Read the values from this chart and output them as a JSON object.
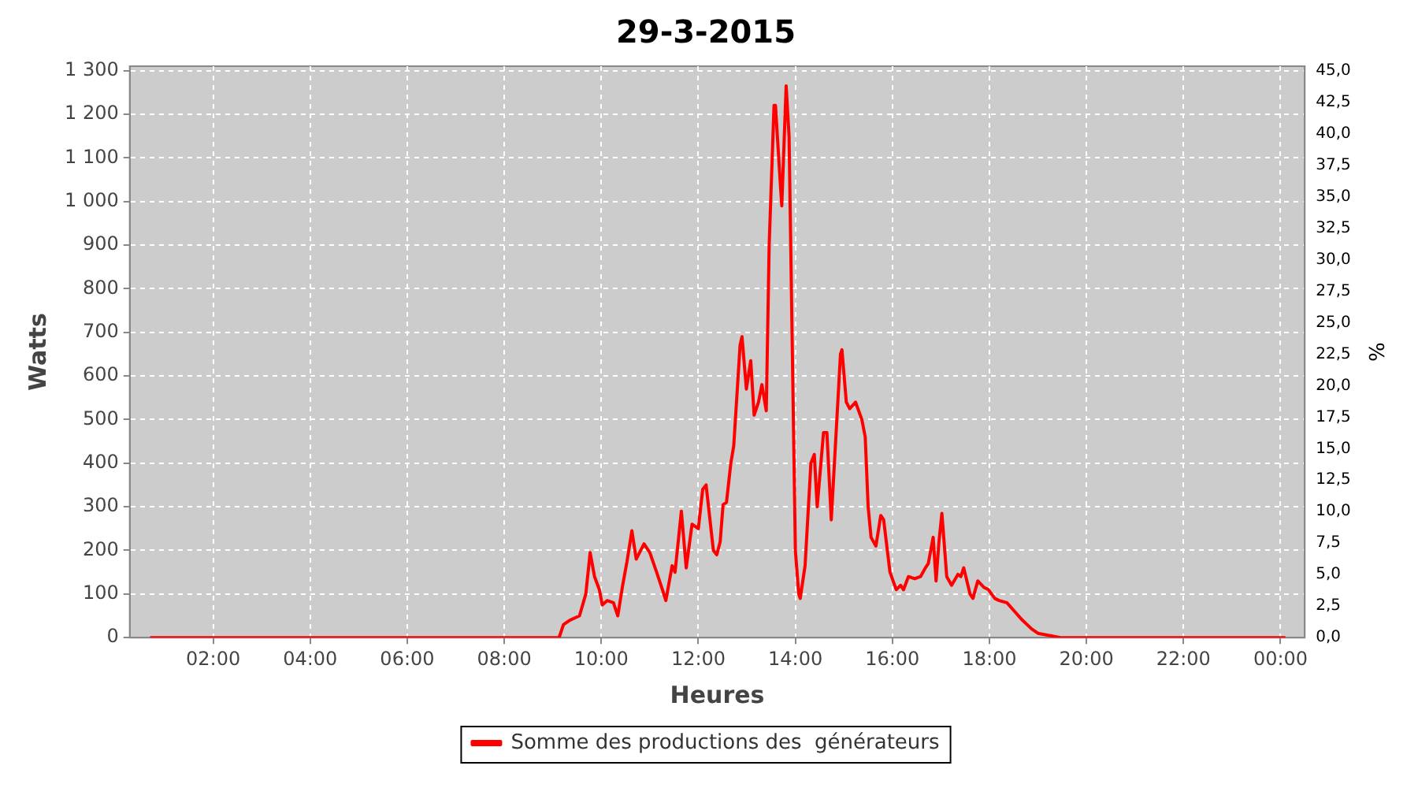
{
  "chart_data": {
    "type": "line",
    "title": "29-3-2015",
    "xlabel": "Heures",
    "ylabel": "Watts",
    "y2label": "%",
    "x": [
      0.7,
      9.13,
      9.22,
      9.35,
      9.55,
      9.68,
      9.77,
      9.86,
      9.96,
      10.02,
      10.12,
      10.25,
      10.34,
      10.44,
      10.53,
      10.63,
      10.72,
      10.88,
      11.0,
      11.14,
      11.26,
      11.33,
      11.46,
      11.52,
      11.65,
      11.75,
      11.87,
      12.0,
      12.09,
      12.16,
      12.31,
      12.38,
      12.45,
      12.51,
      12.58,
      12.67,
      12.73,
      12.86,
      12.9,
      12.99,
      13.08,
      13.15,
      13.24,
      13.31,
      13.4,
      13.46,
      13.56,
      13.59,
      13.69,
      13.72,
      13.81,
      13.87,
      13.94,
      14.0,
      14.07,
      14.1,
      14.2,
      14.32,
      14.39,
      14.45,
      14.58,
      14.65,
      14.74,
      14.83,
      14.93,
      14.96,
      15.05,
      15.12,
      15.24,
      15.37,
      15.44,
      15.5,
      15.56,
      15.66,
      15.76,
      15.82,
      15.95,
      16.08,
      16.17,
      16.23,
      16.33,
      16.46,
      16.58,
      16.68,
      16.74,
      16.84,
      16.9,
      16.96,
      17.02,
      17.12,
      17.22,
      17.35,
      17.41,
      17.47,
      17.6,
      17.66,
      17.76,
      17.89,
      17.98,
      18.11,
      18.2,
      18.36,
      18.52,
      18.68,
      18.87,
      19.0,
      19.47,
      24.1
    ],
    "series": [
      {
        "name": "Somme des productions des  générateurs",
        "color": "#ff0000",
        "values": [
          0,
          0,
          30,
          40,
          50,
          100,
          195,
          140,
          110,
          75,
          85,
          80,
          50,
          120,
          175,
          245,
          180,
          215,
          195,
          150,
          110,
          85,
          165,
          150,
          290,
          160,
          260,
          250,
          340,
          350,
          200,
          190,
          220,
          305,
          310,
          400,
          440,
          670,
          690,
          570,
          635,
          510,
          540,
          580,
          520,
          900,
          1220,
          1220,
          1040,
          990,
          1265,
          1150,
          640,
          200,
          100,
          90,
          165,
          400,
          420,
          300,
          470,
          470,
          270,
          450,
          650,
          660,
          540,
          525,
          540,
          500,
          460,
          300,
          230,
          210,
          280,
          270,
          150,
          110,
          120,
          110,
          140,
          135,
          140,
          160,
          170,
          230,
          130,
          220,
          285,
          140,
          120,
          145,
          140,
          160,
          100,
          90,
          130,
          115,
          110,
          90,
          85,
          80,
          60,
          40,
          20,
          10,
          0,
          0
        ]
      }
    ],
    "xlim": [
      0.28,
      24.5
    ],
    "xticks": [
      {
        "value": 2,
        "label": "02:00"
      },
      {
        "value": 4,
        "label": "04:00"
      },
      {
        "value": 6,
        "label": "06:00"
      },
      {
        "value": 8,
        "label": "08:00"
      },
      {
        "value": 10,
        "label": "10:00"
      },
      {
        "value": 12,
        "label": "12:00"
      },
      {
        "value": 14,
        "label": "14:00"
      },
      {
        "value": 16,
        "label": "16:00"
      },
      {
        "value": 18,
        "label": "18:00"
      },
      {
        "value": 20,
        "label": "20:00"
      },
      {
        "value": 22,
        "label": "22:00"
      },
      {
        "value": 24,
        "label": "00:00"
      }
    ],
    "ylim": [
      0,
      1310
    ],
    "yticks": [
      0,
      100,
      200,
      300,
      400,
      500,
      600,
      700,
      800,
      900,
      {
        "value": 1000,
        "label": "1 000"
      },
      {
        "value": 1100,
        "label": "1 100"
      },
      {
        "value": 1200,
        "label": "1 200"
      },
      {
        "value": 1300,
        "label": "1 300"
      }
    ],
    "y2lim": [
      0,
      45.35
    ],
    "y2ticks": [
      {
        "value": 0,
        "label": "0,0"
      },
      {
        "value": 2.5,
        "label": "2,5"
      },
      {
        "value": 5,
        "label": "5,0"
      },
      {
        "value": 7.5,
        "label": "7,5"
      },
      {
        "value": 10,
        "label": "10,0"
      },
      {
        "value": 12.5,
        "label": "12,5"
      },
      {
        "value": 15,
        "label": "15,0"
      },
      {
        "value": 17.5,
        "label": "17,5"
      },
      {
        "value": 20,
        "label": "20,0"
      },
      {
        "value": 22.5,
        "label": "22,5"
      },
      {
        "value": 25,
        "label": "25,0"
      },
      {
        "value": 27.5,
        "label": "27,5"
      },
      {
        "value": 30,
        "label": "30,0"
      },
      {
        "value": 32.5,
        "label": "32,5"
      },
      {
        "value": 35,
        "label": "35,0"
      },
      {
        "value": 37.5,
        "label": "37,5"
      },
      {
        "value": 40,
        "label": "40,0"
      },
      {
        "value": 42.5,
        "label": "42,5"
      },
      {
        "value": 45,
        "label": "45,0"
      }
    ],
    "grid": true,
    "legend": "bottom",
    "line_style": "solid"
  }
}
